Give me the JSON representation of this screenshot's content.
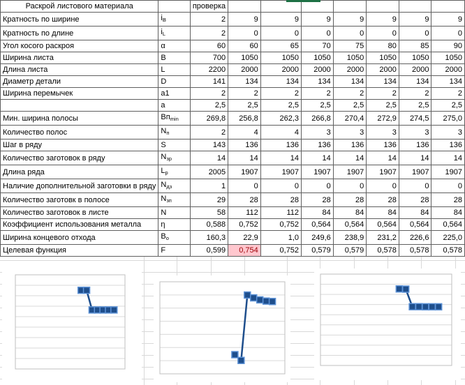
{
  "sheet": {
    "title": "Раскрой листового материала",
    "check_label": "проверка",
    "columns_note": "symbol column then 8 value columns",
    "rows": [
      {
        "label": "Кратность по ширине",
        "sym": "i",
        "sub": "B",
        "values": [
          "2",
          "9",
          "9",
          "9",
          "9",
          "9",
          "9",
          "9"
        ]
      },
      {
        "label": "Кратность по длине",
        "sym": "i",
        "sub": "L",
        "values": [
          "2",
          "0",
          "0",
          "0",
          "0",
          "0",
          "0",
          "0"
        ]
      },
      {
        "label": "Угол косого раскроя",
        "sym": "α",
        "sub": "",
        "values": [
          "60",
          "60",
          "65",
          "70",
          "75",
          "80",
          "85",
          "90"
        ]
      },
      {
        "label": "Ширина листа",
        "sym": "B",
        "sub": "",
        "values": [
          "700",
          "1050",
          "1050",
          "1050",
          "1050",
          "1050",
          "1050",
          "1050"
        ]
      },
      {
        "label": "Длина листа",
        "sym": "L",
        "sub": "",
        "values": [
          "2200",
          "2000",
          "2000",
          "2000",
          "2000",
          "2000",
          "2000",
          "2000"
        ]
      },
      {
        "label": "Диаметр детали",
        "sym": "D",
        "sub": "",
        "values": [
          "141",
          "134",
          "134",
          "134",
          "134",
          "134",
          "134",
          "134"
        ]
      },
      {
        "label": "Ширина перемычек",
        "sym": "a1",
        "sub": "",
        "values": [
          "2",
          "2",
          "2",
          "2",
          "2",
          "2",
          "2",
          "2"
        ]
      },
      {
        "label": "",
        "sym": "a",
        "sub": "",
        "values": [
          "2,5",
          "2,5",
          "2,5",
          "2,5",
          "2,5",
          "2,5",
          "2,5",
          "2,5"
        ]
      },
      {
        "label": "Мин. ширина полосы",
        "sym": "Bп",
        "sub": "min",
        "values": [
          "269,8",
          "256,8",
          "262,3",
          "266,8",
          "270,4",
          "272,9",
          "274,5",
          "275,0"
        ]
      },
      {
        "label": "Количество полос",
        "sym": "N",
        "sub": "п",
        "values": [
          "2",
          "4",
          "4",
          "3",
          "3",
          "3",
          "3",
          "3"
        ]
      },
      {
        "label": "Шаг в ряду",
        "sym": "S",
        "sub": "",
        "values": [
          "143",
          "136",
          "136",
          "136",
          "136",
          "136",
          "136",
          "136"
        ]
      },
      {
        "label": "Количество заготовок в ряду",
        "sym": "N",
        "sub": "зр",
        "values": [
          "14",
          "14",
          "14",
          "14",
          "14",
          "14",
          "14",
          "14"
        ]
      },
      {
        "label": "Длина ряда",
        "sym": "L",
        "sub": "р",
        "values": [
          "2005",
          "1907",
          "1907",
          "1907",
          "1907",
          "1907",
          "1907",
          "1907"
        ]
      },
      {
        "label": "Наличие дополнительной заготовки в ряду",
        "sym": "N",
        "sub": "дз",
        "values": [
          "1",
          "0",
          "0",
          "0",
          "0",
          "0",
          "0",
          "0"
        ]
      },
      {
        "label": "Количество заготовк в полосе",
        "sym": "N",
        "sub": "зп",
        "values": [
          "29",
          "28",
          "28",
          "28",
          "28",
          "28",
          "28",
          "28"
        ]
      },
      {
        "label": "Количество заготовок в листе",
        "sym": "N",
        "sub": "",
        "values": [
          "58",
          "112",
          "112",
          "84",
          "84",
          "84",
          "84",
          "84"
        ]
      },
      {
        "label": "Коэффициент использования металла",
        "sym": "η",
        "sub": "",
        "values": [
          "0,588",
          "0,752",
          "0,752",
          "0,564",
          "0,564",
          "0,564",
          "0,564",
          "0,564"
        ]
      },
      {
        "label": "Ширина концевого отхода",
        "sym": "B",
        "sub": "о",
        "values": [
          "160,3",
          "22,9",
          "1,0",
          "249,6",
          "238,9",
          "231,2",
          "226,6",
          "225,0"
        ]
      },
      {
        "label": "Целевая функция",
        "sym": "F",
        "sub": "",
        "values": [
          "0,599",
          "0,754",
          "0,752",
          "0,579",
          "0,579",
          "0,578",
          "0,578",
          "0,578"
        ]
      }
    ],
    "highlight": {
      "row_index": 18,
      "value_index": 1,
      "bg": "#FFC7CE",
      "text": "#9C0006"
    },
    "colors": {
      "selection_green": "#1E7145",
      "cell_border": "#5f5f5f",
      "sheet_gridline": "#d9d9d9"
    }
  },
  "chart_data": [
    {
      "type": "scatter",
      "name": "eta-vs-alpha",
      "title": "",
      "xlabel": "",
      "ylabel": "",
      "x": [
        60,
        65,
        70,
        75,
        80,
        85,
        90
      ],
      "y": [
        0.752,
        0.752,
        0.564,
        0.564,
        0.564,
        0.564,
        0.564
      ],
      "xlim": [
        0,
        100
      ],
      "ylim": [
        0,
        0.9
      ],
      "ygrid_step": 0.1,
      "grid": "horizontal only",
      "legend": "none"
    },
    {
      "type": "scatter",
      "name": "end-waste-vs-alpha",
      "title": "",
      "xlabel": "",
      "ylabel": "",
      "x": [
        60,
        65,
        70,
        75,
        80,
        85,
        90
      ],
      "y": [
        22.9,
        1.0,
        249.6,
        238.9,
        231.2,
        226.6,
        225.0
      ],
      "xlim": [
        0,
        100
      ],
      "ylim": [
        -50,
        300
      ],
      "ygrid_step": 50,
      "grid": "horizontal only",
      "legend": "none"
    },
    {
      "type": "scatter",
      "name": "objective-function-vs-alpha",
      "title": "",
      "xlabel": "",
      "ylabel": "",
      "x": [
        60,
        65,
        70,
        75,
        80,
        85,
        90
      ],
      "y": [
        0.754,
        0.752,
        0.579,
        0.579,
        0.578,
        0.578,
        0.578
      ],
      "xlim": [
        0,
        100
      ],
      "ylim": [
        0,
        0.9
      ],
      "ygrid_step": 0.1,
      "grid": "horizontal only",
      "legend": "none"
    }
  ],
  "chart_style": {
    "series_color": "#1E4E8C",
    "marker_fill": "#1E4E8C",
    "marker_border": "#5D92D6",
    "plot_border": "#BFBFBF",
    "plot_gridline": "#D9D9D9",
    "marker_size": 9,
    "line_width": 2.5
  }
}
